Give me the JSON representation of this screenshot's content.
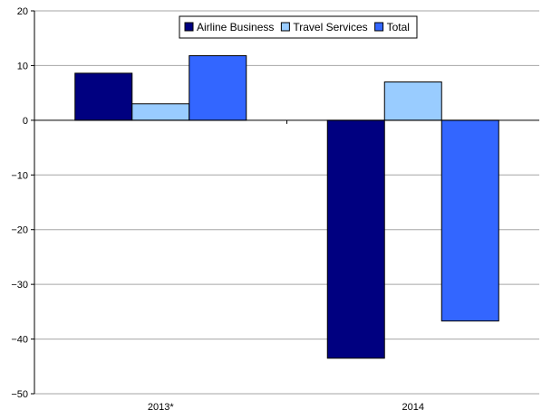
{
  "chart_data": {
    "type": "bar",
    "title": "",
    "xlabel": "",
    "ylabel": "",
    "categories": [
      "2013*",
      "2014"
    ],
    "ylim": [
      -50,
      20
    ],
    "yticks": [
      20,
      10,
      0,
      -10,
      -20,
      -30,
      -40,
      -50
    ],
    "ytick_labels": [
      "20",
      "10",
      "0",
      "−10",
      "−20",
      "−30",
      "−40",
      "−50"
    ],
    "grid": true,
    "legend_position": "top-center",
    "series": [
      {
        "name": "Airline Business",
        "values": [
          8.6,
          -43.5
        ],
        "color": "#000080"
      },
      {
        "name": "Travel Services",
        "values": [
          3.0,
          7.0
        ],
        "color": "#99ccff"
      },
      {
        "name": "Total",
        "values": [
          11.8,
          -36.7
        ],
        "color": "#3366ff"
      }
    ]
  }
}
